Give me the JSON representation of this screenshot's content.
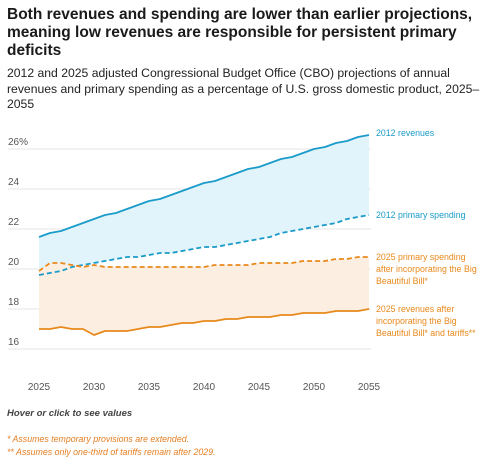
{
  "header": {
    "title": "Both revenues and spending are lower than earlier projections, meaning low revenues are responsible for persistent primary deficits",
    "subtitle": "2012 and 2025 adjusted Congressional Budget Office (CBO) projections of annual revenues and primary spending as a percentage of U.S. gross domestic product, 2025–2055"
  },
  "footer": {
    "hint": "Hover or click to see values",
    "note1": "* Assumes temporary provisions are extended.",
    "note2": "** Assumes only one-third of tariffs remain after 2029."
  },
  "colors": {
    "blue": "#1a9bc9",
    "blue_fill": "#e1f4fb",
    "orange": "#e8891c",
    "orange_fill": "#fdeee2",
    "grid": "#e4e4e4",
    "axis_text": "#555555"
  },
  "chart_data": {
    "type": "line",
    "x": [
      2025,
      2026,
      2027,
      2028,
      2029,
      2030,
      2031,
      2032,
      2033,
      2034,
      2035,
      2036,
      2037,
      2038,
      2039,
      2040,
      2041,
      2042,
      2043,
      2044,
      2045,
      2046,
      2047,
      2048,
      2049,
      2050,
      2051,
      2052,
      2053,
      2054,
      2055
    ],
    "xlim": [
      2025,
      2055
    ],
    "ylim": [
      15.2,
      27.2
    ],
    "xticks": [
      "2025",
      "2030",
      "2035",
      "2040",
      "2045",
      "2050",
      "2055"
    ],
    "yticks": [
      "16",
      "18",
      "20",
      "22",
      "24",
      "26%"
    ],
    "ytick_values": [
      16,
      18,
      20,
      22,
      24,
      26
    ],
    "grid": "horizontal",
    "series": [
      {
        "name": "2012 revenues",
        "style": "solid",
        "color": "#1a9bc9",
        "values": [
          21.6,
          21.8,
          21.9,
          22.1,
          22.3,
          22.5,
          22.7,
          22.8,
          23.0,
          23.2,
          23.4,
          23.5,
          23.7,
          23.9,
          24.1,
          24.3,
          24.4,
          24.6,
          24.8,
          25.0,
          25.1,
          25.3,
          25.5,
          25.6,
          25.8,
          26.0,
          26.1,
          26.3,
          26.4,
          26.6,
          26.7
        ]
      },
      {
        "name": "2012 primary spending",
        "style": "dashed",
        "color": "#1a9bc9",
        "values": [
          19.7,
          19.8,
          19.9,
          20.1,
          20.2,
          20.3,
          20.4,
          20.5,
          20.6,
          20.6,
          20.7,
          20.8,
          20.8,
          20.9,
          21.0,
          21.1,
          21.1,
          21.2,
          21.3,
          21.4,
          21.5,
          21.6,
          21.8,
          21.9,
          22.0,
          22.1,
          22.2,
          22.3,
          22.5,
          22.6,
          22.7
        ]
      },
      {
        "name": "2025 primary spending after incorporating the Big Beautiful Bill*",
        "style": "dashed",
        "color": "#e8891c",
        "values": [
          19.9,
          20.3,
          20.3,
          20.2,
          20.1,
          20.2,
          20.1,
          20.1,
          20.1,
          20.1,
          20.1,
          20.1,
          20.1,
          20.1,
          20.1,
          20.1,
          20.2,
          20.2,
          20.2,
          20.2,
          20.3,
          20.3,
          20.3,
          20.3,
          20.4,
          20.4,
          20.4,
          20.5,
          20.5,
          20.6,
          20.6
        ]
      },
      {
        "name": "2025 revenues after incorporating the Big Beautiful Bill* and tariffs**",
        "style": "solid",
        "color": "#e8891c",
        "values": [
          17.0,
          17.0,
          17.1,
          17.0,
          17.0,
          16.7,
          16.9,
          16.9,
          16.9,
          17.0,
          17.1,
          17.1,
          17.2,
          17.3,
          17.3,
          17.4,
          17.4,
          17.5,
          17.5,
          17.6,
          17.6,
          17.6,
          17.7,
          17.7,
          17.8,
          17.8,
          17.8,
          17.9,
          17.9,
          17.9,
          18.0
        ]
      }
    ],
    "labels": {
      "rev2012": "2012 revenues",
      "sp2012": "2012 primary spending",
      "sp2025": [
        "2025 primary spending",
        "after incorporating the Big",
        "Beautiful Bill*"
      ],
      "rev2025": [
        "2025 revenues after",
        "incorporating the Big",
        "Beautiful Bill* and tariffs**"
      ]
    }
  }
}
